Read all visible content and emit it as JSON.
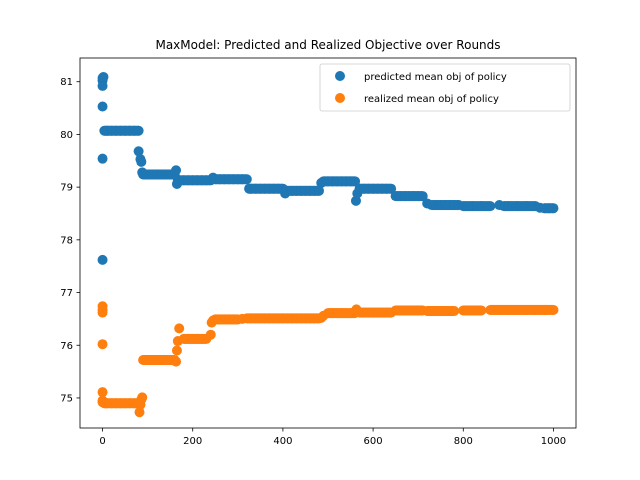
{
  "chart_data": {
    "type": "scatter",
    "title": "MaxModel: Predicted and Realized Objective over Rounds",
    "xlabel": "",
    "ylabel": "",
    "xlim": [
      -50,
      1050
    ],
    "ylim": [
      74.43,
      81.45
    ],
    "xticks": [
      0,
      200,
      400,
      600,
      800,
      1000
    ],
    "yticks": [
      75,
      76,
      77,
      78,
      79,
      80,
      81
    ],
    "grid": false,
    "legend_position": "top-right",
    "series": [
      {
        "name": "predicted mean obj of policy",
        "color": "#1f77b4",
        "x": [
          0,
          0,
          0,
          0,
          0,
          0,
          2,
          4,
          6,
          8,
          12,
          20,
          30,
          40,
          50,
          60,
          70,
          80,
          80,
          84,
          86,
          88,
          90,
          100,
          110,
          120,
          130,
          140,
          150,
          160,
          163,
          165,
          167,
          170,
          180,
          190,
          200,
          210,
          220,
          230,
          240,
          245,
          250,
          260,
          270,
          280,
          290,
          300,
          310,
          320,
          325,
          330,
          340,
          350,
          360,
          370,
          380,
          390,
          400,
          405,
          410,
          420,
          430,
          440,
          450,
          460,
          470,
          480,
          485,
          490,
          500,
          510,
          520,
          530,
          540,
          550,
          560,
          562,
          565,
          570,
          580,
          590,
          600,
          610,
          620,
          630,
          640,
          650,
          660,
          670,
          680,
          690,
          700,
          710,
          720,
          730,
          740,
          750,
          760,
          770,
          780,
          790,
          800,
          820,
          840,
          860,
          880,
          890,
          900,
          920,
          940,
          960,
          970,
          980,
          990,
          1000
        ],
        "y": [
          77.62,
          79.54,
          80.53,
          80.92,
          81.02,
          81.07,
          81.09,
          80.07,
          80.07,
          80.07,
          80.07,
          80.07,
          80.07,
          80.07,
          80.07,
          80.07,
          80.07,
          80.07,
          79.68,
          79.53,
          79.48,
          79.28,
          79.24,
          79.24,
          79.24,
          79.24,
          79.24,
          79.24,
          79.24,
          79.24,
          79.32,
          79.06,
          79.13,
          79.13,
          79.13,
          79.13,
          79.13,
          79.13,
          79.13,
          79.13,
          79.13,
          79.18,
          79.15,
          79.15,
          79.15,
          79.15,
          79.15,
          79.15,
          79.15,
          79.15,
          78.97,
          78.97,
          78.97,
          78.97,
          78.97,
          78.97,
          78.97,
          78.97,
          78.97,
          78.88,
          78.93,
          78.93,
          78.93,
          78.93,
          78.93,
          78.93,
          78.93,
          78.93,
          79.08,
          79.11,
          79.11,
          79.11,
          79.11,
          79.11,
          79.11,
          79.11,
          79.11,
          78.74,
          78.88,
          78.97,
          78.97,
          78.97,
          78.97,
          78.97,
          78.97,
          78.97,
          78.97,
          78.83,
          78.83,
          78.83,
          78.83,
          78.83,
          78.83,
          78.83,
          78.69,
          78.66,
          78.66,
          78.66,
          78.66,
          78.66,
          78.66,
          78.66,
          78.64,
          78.64,
          78.64,
          78.64,
          78.66,
          78.64,
          78.64,
          78.64,
          78.64,
          78.64,
          78.61,
          78.6,
          78.6,
          78.6
        ]
      },
      {
        "name": "realized mean obj of policy",
        "color": "#ff7f0e",
        "x": [
          0,
          0,
          0,
          0,
          0,
          0,
          0,
          2,
          4,
          6,
          10,
          20,
          30,
          40,
          50,
          60,
          70,
          80,
          82,
          84,
          86,
          88,
          90,
          100,
          110,
          120,
          130,
          140,
          150,
          160,
          163,
          165,
          167,
          170,
          180,
          190,
          200,
          210,
          220,
          230,
          240,
          242,
          245,
          250,
          260,
          270,
          280,
          290,
          300,
          310,
          320,
          330,
          340,
          350,
          360,
          370,
          380,
          390,
          400,
          410,
          420,
          430,
          440,
          450,
          460,
          470,
          480,
          485,
          490,
          500,
          510,
          520,
          530,
          540,
          550,
          560,
          563,
          570,
          580,
          590,
          600,
          610,
          620,
          630,
          640,
          650,
          660,
          670,
          680,
          690,
          700,
          710,
          720,
          740,
          760,
          780,
          800,
          820,
          840,
          860,
          880,
          900,
          920,
          940,
          960,
          980,
          1000
        ],
        "y": [
          76.74,
          76.67,
          76.62,
          76.02,
          75.11,
          74.95,
          74.92,
          74.92,
          74.9,
          74.9,
          74.9,
          74.9,
          74.9,
          74.9,
          74.9,
          74.9,
          74.9,
          74.9,
          74.73,
          74.87,
          74.97,
          75.01,
          75.72,
          75.72,
          75.72,
          75.72,
          75.72,
          75.72,
          75.72,
          75.72,
          75.69,
          75.9,
          76.08,
          76.32,
          76.12,
          76.12,
          76.12,
          76.12,
          76.12,
          76.12,
          76.2,
          76.43,
          76.47,
          76.49,
          76.49,
          76.49,
          76.49,
          76.49,
          76.49,
          76.5,
          76.51,
          76.51,
          76.51,
          76.51,
          76.51,
          76.51,
          76.51,
          76.51,
          76.51,
          76.51,
          76.51,
          76.51,
          76.51,
          76.51,
          76.51,
          76.51,
          76.51,
          76.52,
          76.56,
          76.61,
          76.61,
          76.61,
          76.61,
          76.61,
          76.61,
          76.61,
          76.68,
          76.62,
          76.62,
          76.62,
          76.62,
          76.62,
          76.62,
          76.62,
          76.62,
          76.66,
          76.66,
          76.66,
          76.66,
          76.66,
          76.66,
          76.66,
          76.65,
          76.65,
          76.65,
          76.65,
          76.66,
          76.66,
          76.66,
          76.67,
          76.67,
          76.67,
          76.67,
          76.67,
          76.67,
          76.67,
          76.67
        ]
      }
    ]
  }
}
